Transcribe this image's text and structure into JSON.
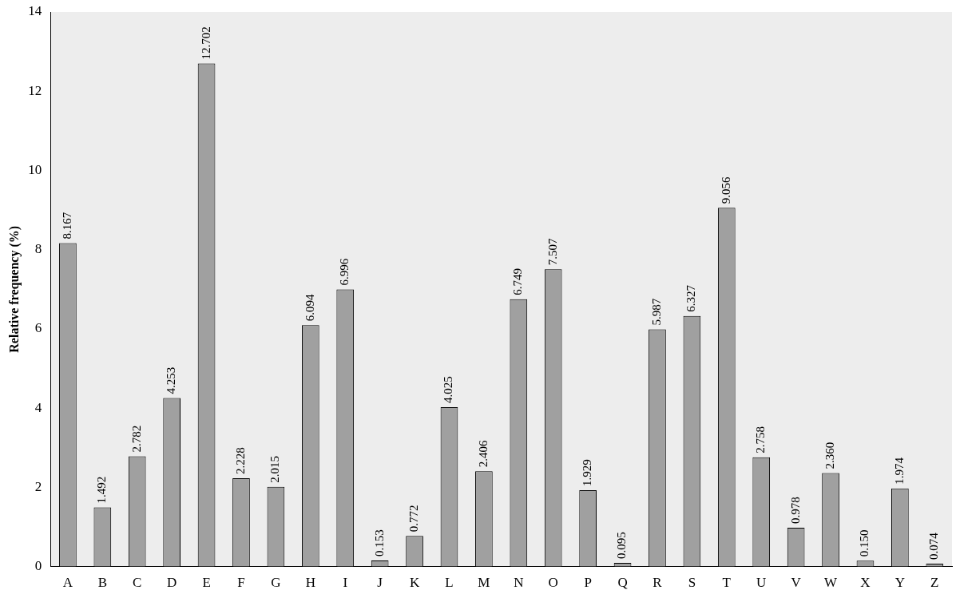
{
  "chart_data": {
    "type": "bar",
    "ylabel": "Relative frequency (%)",
    "categories": [
      "A",
      "B",
      "C",
      "D",
      "E",
      "F",
      "G",
      "H",
      "I",
      "J",
      "K",
      "L",
      "M",
      "N",
      "O",
      "P",
      "Q",
      "R",
      "S",
      "T",
      "U",
      "V",
      "W",
      "X",
      "Y",
      "Z"
    ],
    "values": [
      8.167,
      1.492,
      2.782,
      4.253,
      12.702,
      2.228,
      2.015,
      6.094,
      6.996,
      0.153,
      0.772,
      4.025,
      2.406,
      6.749,
      7.507,
      1.929,
      0.095,
      5.987,
      6.327,
      9.056,
      2.758,
      0.978,
      2.36,
      0.15,
      1.974,
      0.074
    ],
    "value_labels": [
      "8.167",
      "1.492",
      "2.782",
      "4.253",
      "12.702",
      "2.228",
      "2.015",
      "6.094",
      "6.996",
      "0.153",
      "0.772",
      "4.025",
      "2.406",
      "6.749",
      "7.507",
      "1.929",
      "0.095",
      "5.987",
      "6.327",
      "9.056",
      "2.758",
      "0.978",
      "2.360",
      "0.150",
      "1.974",
      "0.074"
    ],
    "color": "#a0a0a0",
    "ylim": [
      0,
      14
    ],
    "yticks": [
      0,
      2,
      4,
      6,
      8,
      10,
      12,
      14
    ],
    "grid": false,
    "legend": false
  }
}
